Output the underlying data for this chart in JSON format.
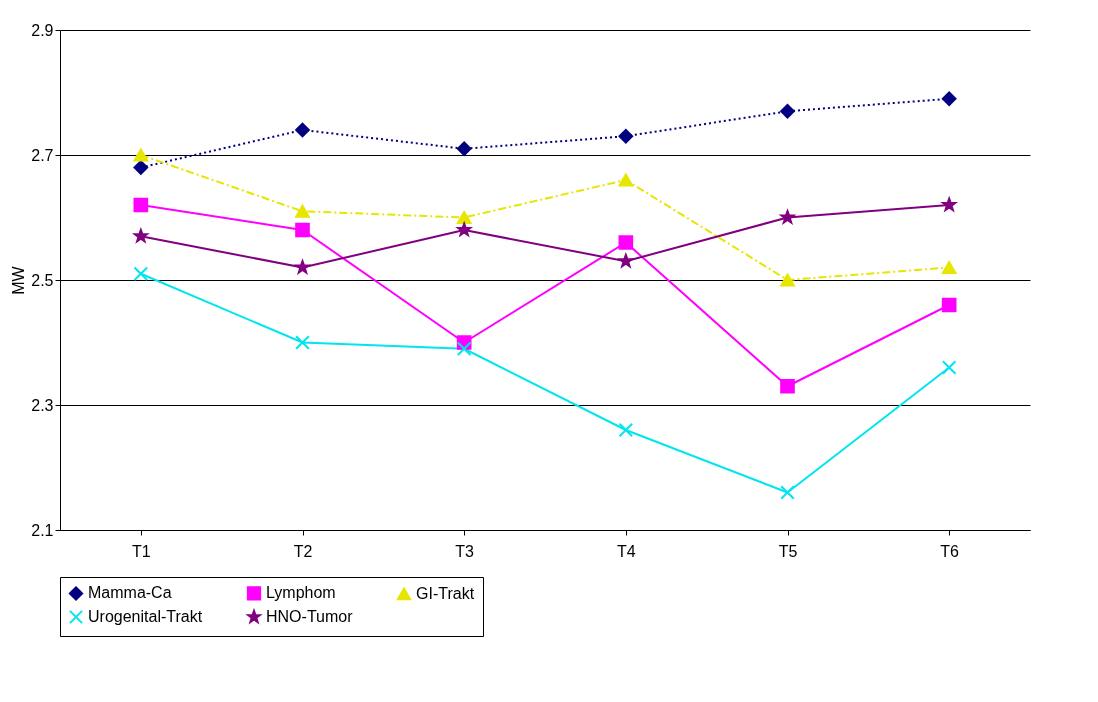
{
  "chart_data": {
    "type": "line",
    "ylabel": "MW",
    "categories": [
      "T1",
      "T2",
      "T3",
      "T4",
      "T5",
      "T6"
    ],
    "ylim": [
      2.1,
      2.9
    ],
    "yticks": [
      2.1,
      2.3,
      2.5,
      2.7,
      2.9
    ],
    "grid": "y",
    "legend": "bottom",
    "series": [
      {
        "name": "Mamma-Ca",
        "color": "#000080",
        "marker": "diamond",
        "line_style": "dotted",
        "values": [
          2.68,
          2.74,
          2.71,
          2.73,
          2.77,
          2.79
        ]
      },
      {
        "name": "Lymphom",
        "color": "#ff00ff",
        "marker": "square",
        "line_style": "solid",
        "values": [
          2.62,
          2.58,
          2.4,
          2.56,
          2.33,
          2.46
        ]
      },
      {
        "name": "GI-Trakt",
        "color": "#e6e600",
        "marker": "triangle",
        "line_style": "dashed",
        "values": [
          2.7,
          2.61,
          2.6,
          2.66,
          2.5,
          2.52
        ]
      },
      {
        "name": "Urogenital-Trakt",
        "color": "#00e5ee",
        "marker": "cross",
        "line_style": "solid",
        "values": [
          2.51,
          2.4,
          2.39,
          2.26,
          2.16,
          2.36
        ]
      },
      {
        "name": "HNO-Tumor",
        "color": "#800080",
        "marker": "star",
        "line_style": "solid",
        "values": [
          2.57,
          2.52,
          2.58,
          2.53,
          2.6,
          2.62
        ]
      }
    ]
  }
}
